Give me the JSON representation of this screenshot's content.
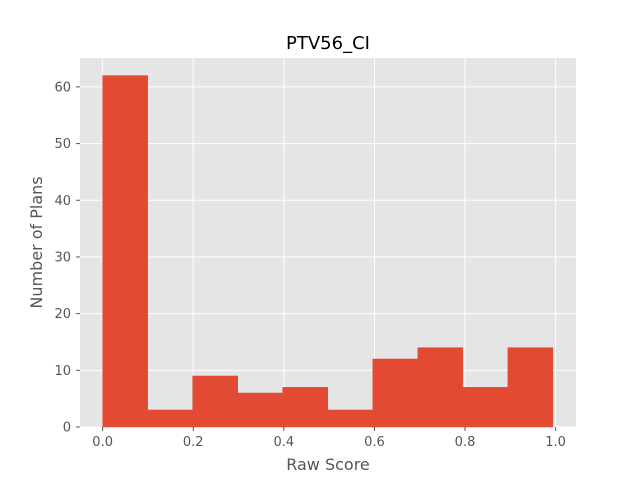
{
  "chart_data": {
    "type": "bar",
    "title": "PTV56_CI",
    "xlabel": "Raw Score",
    "ylabel": "Number of Plans",
    "xlim": [
      -0.05,
      1.045
    ],
    "ylim": [
      0,
      65.1
    ],
    "grid": true,
    "bin_edges": [
      0.0,
      0.0994,
      0.1988,
      0.2982,
      0.3976,
      0.497,
      0.5964,
      0.6958,
      0.7952,
      0.8946,
      0.994
    ],
    "values": [
      62,
      3,
      9,
      6,
      7,
      3,
      12,
      14,
      7,
      14
    ],
    "xticks": [
      0.0,
      0.2,
      0.4,
      0.6,
      0.8,
      1.0
    ],
    "xtick_labels": [
      "0.0",
      "0.2",
      "0.4",
      "0.6",
      "0.8",
      "1.0"
    ],
    "yticks": [
      0,
      10,
      20,
      30,
      40,
      50,
      60
    ],
    "ytick_labels": [
      "0",
      "10",
      "20",
      "30",
      "40",
      "50",
      "60"
    ],
    "colors": {
      "bar": "#E24A33",
      "plot_background": "#E5E5E5",
      "grid": "#FFFFFF",
      "figure_background": "#FFFFFF"
    }
  }
}
